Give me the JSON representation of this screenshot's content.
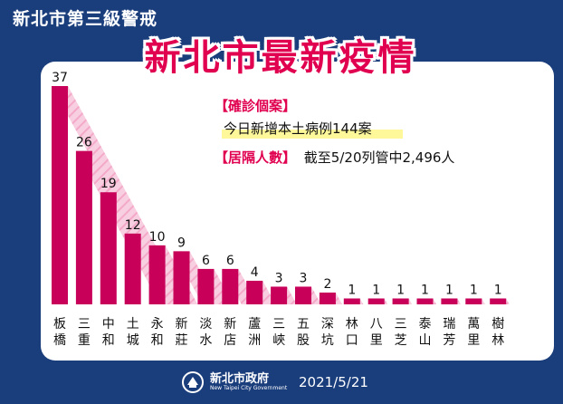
{
  "header": {
    "title": "新北市第三級警戒"
  },
  "main": {
    "title": "新北市最新疫情"
  },
  "info": {
    "confirmed_tag": "【確診個案】",
    "confirmed_text": "今日新增本土病例144案",
    "quarantine_tag": "【居隔人數】",
    "quarantine_text": "截至5/20列管中2,496人"
  },
  "footer": {
    "logo_cn": "新北市政府",
    "logo_en": "New Taipei City Government",
    "date": "2021/5/21"
  },
  "colors": {
    "background": "#1a3d7c",
    "bar": "#c8005a",
    "accent": "#e0004f"
  },
  "chart_data": {
    "type": "bar",
    "title": "新北市最新疫情",
    "categories": [
      "板橋",
      "三重",
      "中和",
      "土城",
      "永和",
      "新莊",
      "淡水",
      "新店",
      "蘆洲",
      "三峽",
      "五股",
      "深坑",
      "林口",
      "八里",
      "三芝",
      "泰山",
      "瑞芳",
      "萬里",
      "樹林"
    ],
    "values": [
      37,
      26,
      19,
      12,
      10,
      9,
      6,
      6,
      4,
      3,
      3,
      2,
      1,
      1,
      1,
      1,
      1,
      1,
      1
    ],
    "xlabel": "",
    "ylabel": "",
    "ylim": [
      0,
      37
    ],
    "grid": false
  }
}
